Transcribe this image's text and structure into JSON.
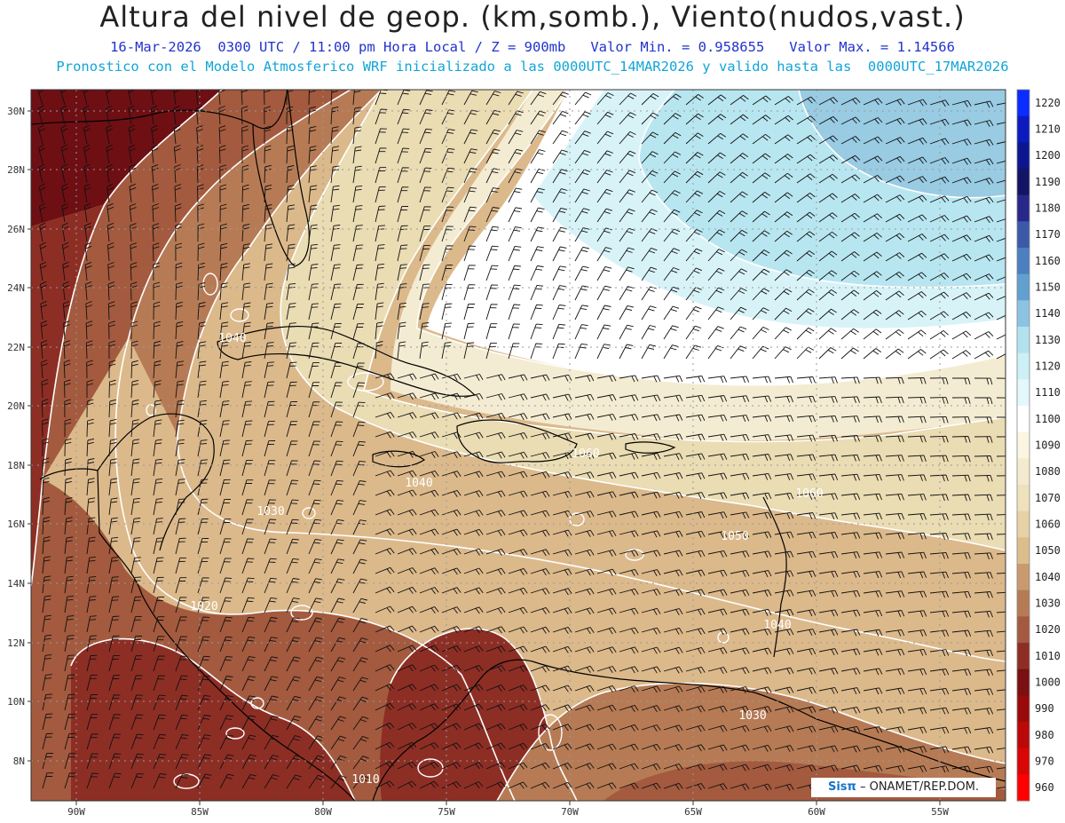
{
  "header": {
    "title": "Altura del nivel de geop. (km,somb.), Viento(nudos,vast.)",
    "subtitle_1": "16-Mar-2026  0300 UTC / 11:00 pm Hora Local / Z = 900mb   Valor Min. = 0.958655   Valor Max. = 1.14566",
    "subtitle_2": "Pronostico con el Modelo Atmosferico WRF inicializado a las 0000UTC_14MAR2026 y valido hasta las  0000UTC_17MAR2026"
  },
  "map": {
    "lat_labels": [
      "30N",
      "28N",
      "26N",
      "24N",
      "22N",
      "20N",
      "18N",
      "16N",
      "14N",
      "12N",
      "10N",
      "8N"
    ],
    "lon_labels": [
      "90W",
      "85W",
      "80W",
      "75W",
      "70W",
      "65W",
      "60W",
      "55W"
    ],
    "contour_labels": [
      "1040",
      "1040",
      "1030",
      "1020",
      "1010",
      "1050",
      "1060",
      "1040",
      "1030",
      "1060"
    ],
    "colors": {
      "dark_red": "#6e0f14",
      "red_brown": "#9a3b28",
      "brown": "#b26a48",
      "tan": "#c9966c",
      "light_tan": "#dcb98b",
      "beige": "#eadcb3",
      "cream": "#f4ecd2",
      "white": "#ffffff",
      "pale_cyan": "#d8f3f8",
      "light_cyan": "#b8e6f0",
      "cyan_blue": "#99cbe3"
    }
  },
  "colorbar": {
    "labels": [
      "1220",
      "1210",
      "1200",
      "1190",
      "1180",
      "1170",
      "1160",
      "1150",
      "1140",
      "1130",
      "1120",
      "1110",
      "1100",
      "1090",
      "1080",
      "1070",
      "1060",
      "1050",
      "1040",
      "1030",
      "1020",
      "1010",
      "1000",
      "990",
      "980",
      "970",
      "960"
    ],
    "colors": [
      "#0a2cff",
      "#0c1bbf",
      "#0c168f",
      "#141466",
      "#28288a",
      "#3a5aa8",
      "#4b7fc0",
      "#62a0d0",
      "#8cc3e2",
      "#b3e2ef",
      "#cdeff6",
      "#e4f7fb",
      "#ffffff",
      "#fbf6e2",
      "#f4ead0",
      "#efe1bb",
      "#e6d2a4",
      "#dcbd8c",
      "#c99a70",
      "#b67b55",
      "#a35a3e",
      "#8d2e25",
      "#7a0f14",
      "#9b0a0a",
      "#bb0808",
      "#d90606",
      "#f00"
    ]
  },
  "credit": {
    "brand": "Sisπ",
    "text": "– ONAMET/REP.DOM."
  }
}
